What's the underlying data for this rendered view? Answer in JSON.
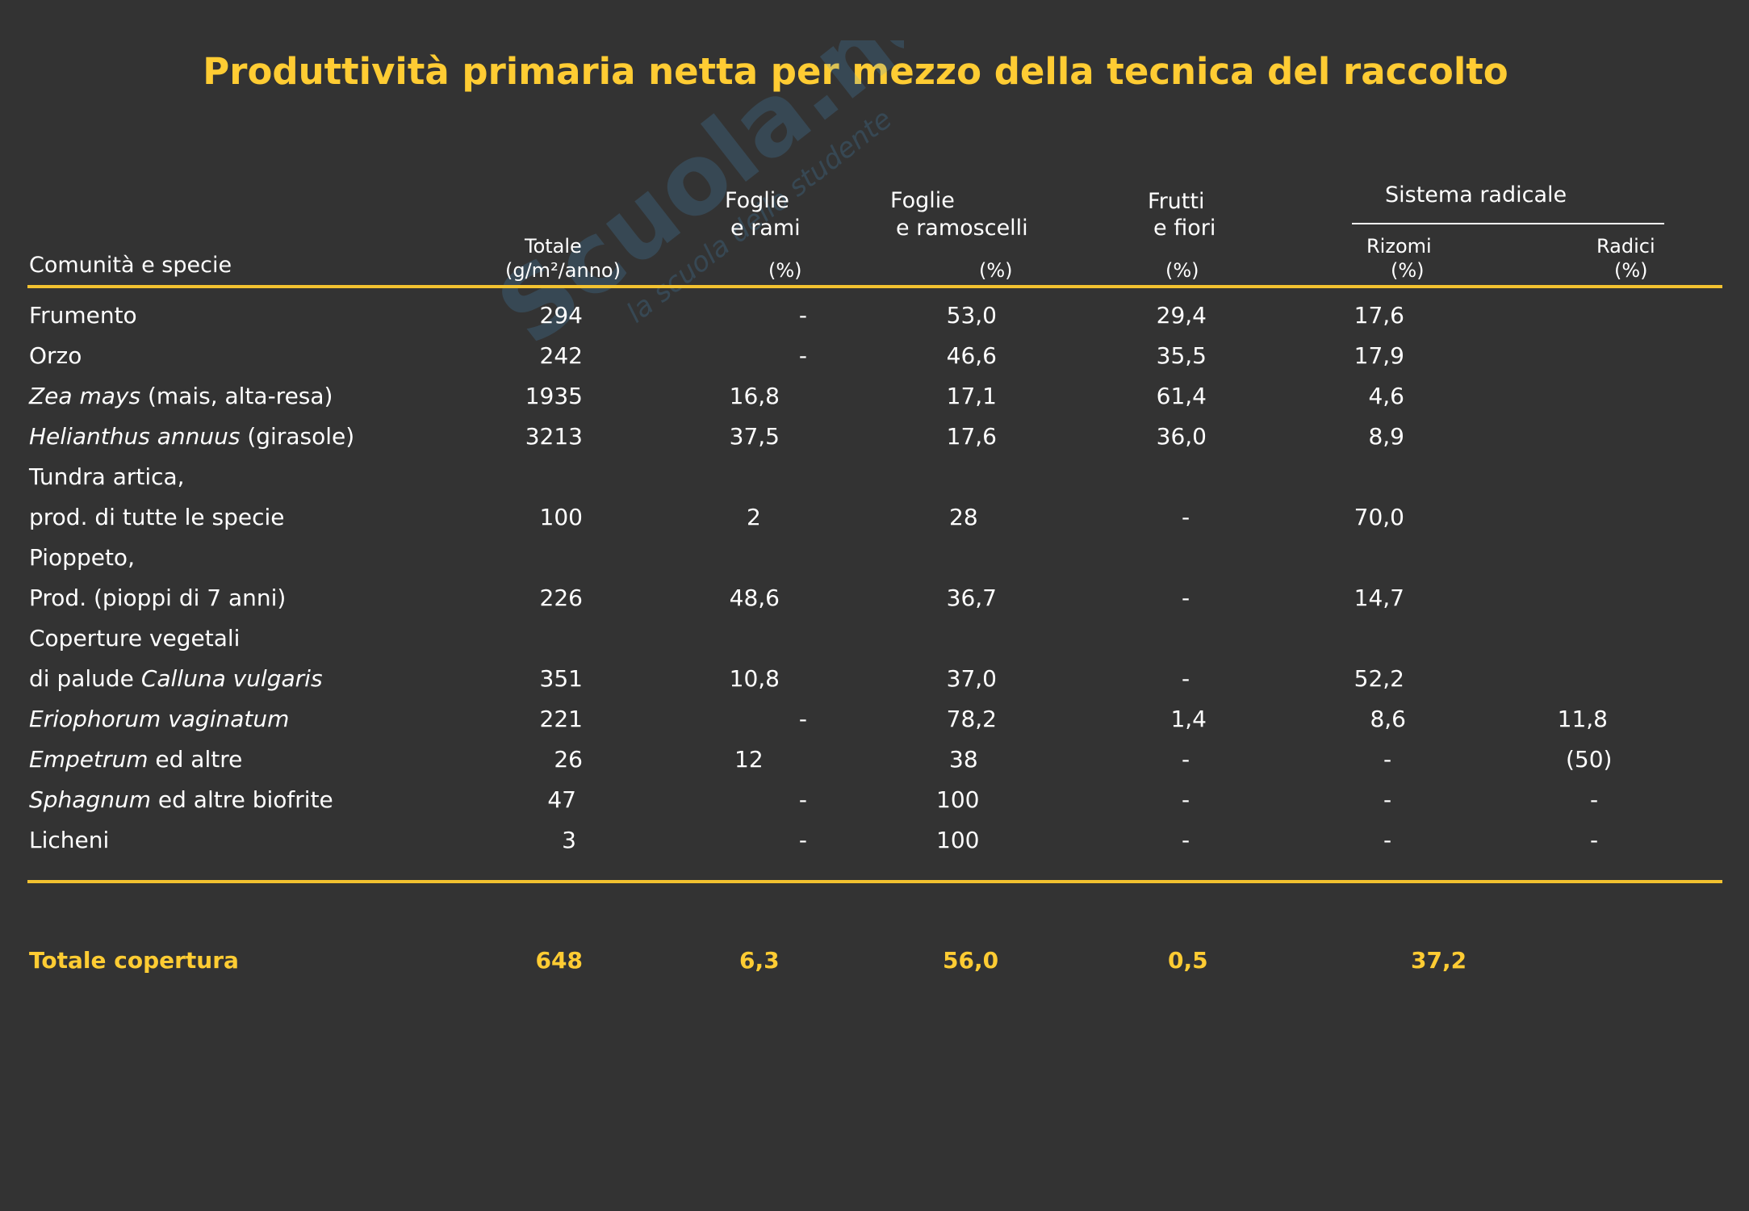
{
  "title": "Produttività primaria netta per mezzo della tecnica del raccolto",
  "watermark": {
    "brand": "Scuola.net",
    "tagline": "la scuola dello studente"
  },
  "colors": {
    "background": "#333333",
    "accent": "#ffcc33",
    "text": "#ffffff"
  },
  "header": {
    "species": "Comunità e specie",
    "totale_1": "Totale",
    "totale_2": "(g/m²/anno)",
    "foglie_rami_1": "Foglie",
    "foglie_rami_2": "e rami",
    "foglie_rami_3": "(%)",
    "foglie_ramoscelli_1": "Foglie",
    "foglie_ramoscelli_2": "e ramoscelli",
    "foglie_ramoscelli_3": "(%)",
    "frutti_1": "Frutti",
    "frutti_2": "e fiori",
    "frutti_3": "(%)",
    "sistema": "Sistema radicale",
    "rizomi_1": "Rizomi",
    "rizomi_2": "(%)",
    "radici_1": "Radici",
    "radici_2": "(%)"
  },
  "rows": [
    {
      "name": "Frumento",
      "totale": "294",
      "foglie_rami": "-",
      "foglie_ramoscelli": "53,0",
      "frutti": "29,4",
      "rizomi": "17,6",
      "radici": ""
    },
    {
      "name": "Orzo",
      "totale": "242",
      "foglie_rami": "-",
      "foglie_ramoscelli": "46,6",
      "frutti": "35,5",
      "rizomi": "17,9",
      "radici": ""
    },
    {
      "name_it": "Zea mays",
      "name_rest": " (mais, alta-resa)",
      "totale": "1935",
      "foglie_rami": "16,8",
      "foglie_ramoscelli": "17,1",
      "frutti": "61,4",
      "rizomi": "4,6",
      "radici": ""
    },
    {
      "name_it": "Helianthus annuus",
      "name_rest": " (girasole)",
      "totale": "3213",
      "foglie_rami": "37,5",
      "foglie_ramoscelli": "17,6",
      "frutti": "36,0",
      "rizomi": "8,9",
      "radici": ""
    },
    {
      "name": "Tundra artica,",
      "totale": "",
      "foglie_rami": "",
      "foglie_ramoscelli": "",
      "frutti": "",
      "rizomi": "",
      "radici": ""
    },
    {
      "name": "prod. di tutte le specie",
      "totale": "100",
      "foglie_rami": "2",
      "foglie_ramoscelli": "28",
      "frutti": "-",
      "rizomi": "70,0",
      "radici": ""
    },
    {
      "name": "Pioppeto,",
      "totale": "",
      "foglie_rami": "",
      "foglie_ramoscelli": "",
      "frutti": "",
      "rizomi": "",
      "radici": ""
    },
    {
      "name": "Prod. (pioppi di 7 anni)",
      "totale": "226",
      "foglie_rami": "48,6",
      "foglie_ramoscelli": "36,7",
      "frutti": "-",
      "rizomi": "14,7",
      "radici": ""
    },
    {
      "name": "Coperture vegetali",
      "totale": "",
      "foglie_rami": "",
      "foglie_ramoscelli": "",
      "frutti": "",
      "rizomi": "",
      "radici": ""
    },
    {
      "name_pre": "di palude ",
      "name_it": "Calluna vulgaris",
      "name_rest": "",
      "totale": "351",
      "foglie_rami": "10,8",
      "foglie_ramoscelli": "37,0",
      "frutti": "-",
      "rizomi": "52,2",
      "radici": ""
    },
    {
      "name_it": "Eriophorum vaginatum",
      "name_rest": "",
      "totale": "221",
      "foglie_rami": "-",
      "foglie_ramoscelli": "78,2",
      "frutti": "1,4",
      "rizomi": "8,6",
      "radici": "11,8"
    },
    {
      "name_it": "Empetrum",
      "name_rest": " ed altre",
      "totale": "26",
      "foglie_rami": "12",
      "foglie_ramoscelli": "38",
      "frutti": "-",
      "rizomi": "-",
      "radici": "(50)"
    },
    {
      "name_it": "Sphagnum",
      "name_rest": " ed altre biofrite",
      "totale": "47",
      "foglie_rami": "-",
      "foglie_ramoscelli": "100",
      "frutti": "-",
      "rizomi": "-",
      "radici": "-"
    },
    {
      "name": "Licheni",
      "totale": "3",
      "foglie_rami": "-",
      "foglie_ramoscelli": "100",
      "frutti": "-",
      "rizomi": "-",
      "radici": "-"
    }
  ],
  "total": {
    "name": "Totale copertura",
    "totale": "648",
    "foglie_rami": "6,3",
    "foglie_ramoscelli": "56,0",
    "frutti": "0,5",
    "rizomi": "37,2"
  }
}
